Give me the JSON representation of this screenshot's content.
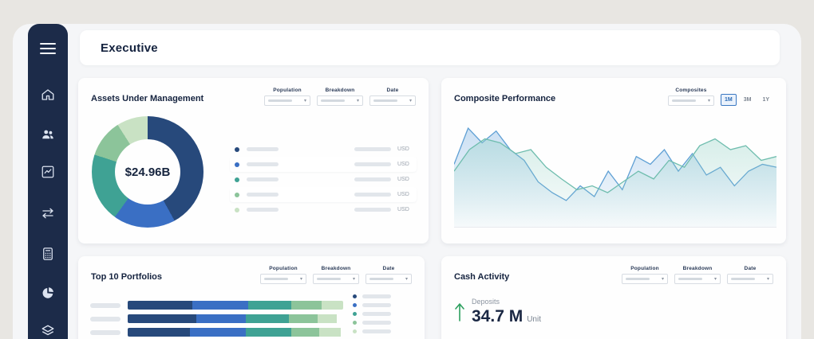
{
  "app": {
    "title": "Executive"
  },
  "icons": {
    "chevron_down": "▾"
  },
  "sidebar": {
    "items": [
      "menu",
      "home",
      "clients",
      "performance",
      "transactions",
      "calculator",
      "allocation",
      "portfolios"
    ]
  },
  "filters": {
    "population": "Population",
    "breakdown": "Breakdown",
    "date": "Date",
    "composites": "Composites"
  },
  "aum": {
    "title": "Assets Under Management",
    "total": "$24.96B",
    "legend": [
      {
        "color": "#27497b",
        "currency": "USD"
      },
      {
        "color": "#3a6fc4",
        "currency": "USD"
      },
      {
        "color": "#3fa294",
        "currency": "USD"
      },
      {
        "color": "#8cc49a",
        "currency": "USD"
      },
      {
        "color": "#c9e2c4",
        "currency": "USD"
      }
    ],
    "chart_data": {
      "type": "pie",
      "center_label": "$24.96B",
      "segments": [
        {
          "color": "#27497b",
          "value": 42
        },
        {
          "color": "#3a6fc4",
          "value": 18
        },
        {
          "color": "#3fa294",
          "value": 20
        },
        {
          "color": "#8cc49a",
          "value": 11
        },
        {
          "color": "#c9e2c4",
          "value": 9
        }
      ]
    }
  },
  "composite": {
    "title": "Composite Performance",
    "ranges": [
      "1M",
      "3M",
      "1Y"
    ],
    "selected_range": "1M",
    "chart_data": {
      "type": "line",
      "grid": false,
      "ylim": [
        0,
        100
      ],
      "series": [
        {
          "name": "composite-blue",
          "color": "#5e9fd4",
          "values": [
            59,
            96,
            81,
            93,
            74,
            63,
            41,
            30,
            22,
            37,
            26,
            52,
            33,
            67,
            59,
            74,
            52,
            70,
            48,
            56,
            37,
            52,
            59,
            56
          ]
        },
        {
          "name": "composite-teal",
          "color": "#6fbdae",
          "values": [
            52,
            74,
            85,
            81,
            70,
            74,
            56,
            44,
            33,
            37,
            30,
            41,
            52,
            44,
            63,
            56,
            78,
            85,
            74,
            78,
            63,
            67
          ]
        }
      ]
    }
  },
  "portfolios": {
    "title": "Top 10 Portfolios",
    "chart_data": {
      "type": "bar",
      "orientation": "horizontal-stacked",
      "colors": [
        "#27497b",
        "#3a6fc4",
        "#3fa294",
        "#8cc49a",
        "#c9e2c4"
      ],
      "rows": [
        {
          "segments": [
            30,
            26,
            20,
            14,
            10
          ]
        },
        {
          "segments": [
            32,
            23,
            20,
            13,
            9
          ]
        },
        {
          "segments": [
            29,
            26,
            21,
            13,
            10
          ]
        }
      ]
    },
    "legend": [
      {
        "color": "#27497b"
      },
      {
        "color": "#3a6fc4"
      },
      {
        "color": "#3fa294"
      },
      {
        "color": "#8cc49a"
      },
      {
        "color": "#c9e2c4"
      }
    ]
  },
  "cash": {
    "title": "Cash Activity",
    "deposits_label": "Deposits",
    "deposits_value": "34.7 M",
    "deposits_unit": "Unit"
  }
}
